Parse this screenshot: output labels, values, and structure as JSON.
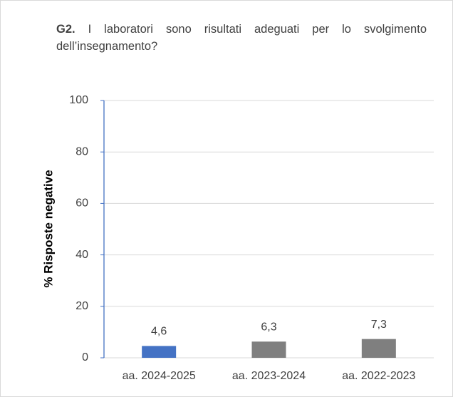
{
  "chart_data": {
    "type": "bar",
    "title_label": "G2.",
    "title": "I laboratori sono risultati adeguati per lo svolgimento dell’insegnamento?",
    "y_label": "% Risposte negative",
    "categories": [
      "aa. 2024-2025",
      "aa. 2023-2024",
      "aa. 2022-2023"
    ],
    "values": [
      4.6,
      6.3,
      7.3
    ],
    "value_labels": [
      "4,6",
      "6,3",
      "7,3"
    ],
    "colors": [
      "#4472c4",
      "#7f7f7f",
      "#7f7f7f"
    ],
    "ylim": [
      0,
      100
    ],
    "yticks": [
      0,
      20,
      40,
      60,
      80,
      100
    ],
    "grid": true
  }
}
